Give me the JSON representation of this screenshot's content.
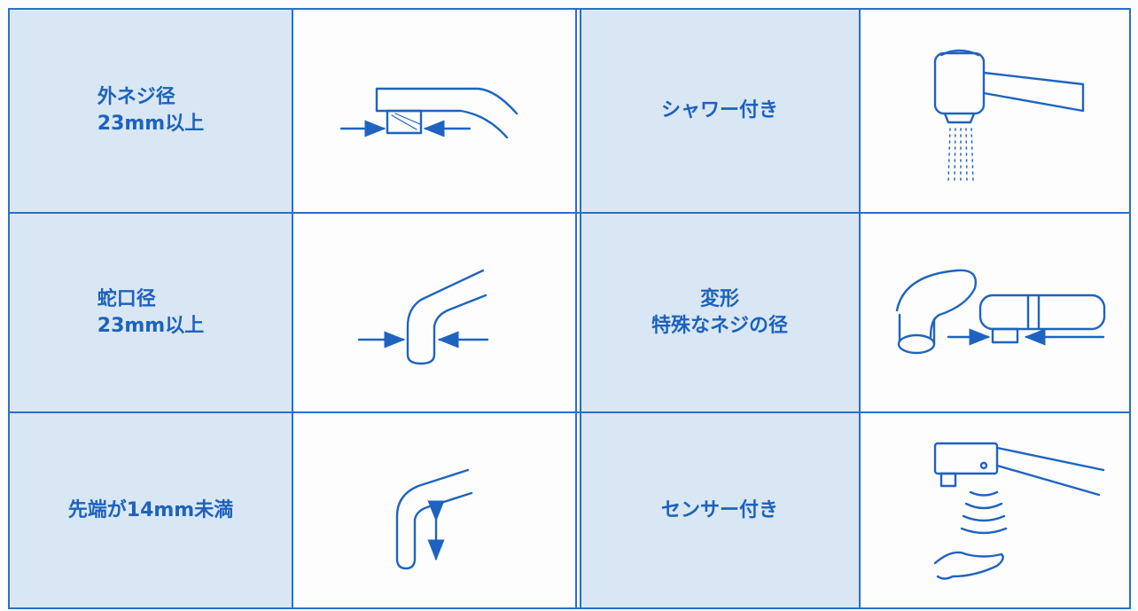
{
  "table": {
    "rows": [
      {
        "left": [
          "外ネジ径",
          "23mm以上"
        ],
        "right": [
          "シャワー付き"
        ]
      },
      {
        "left": [
          "蛇口径",
          "23mm以上"
        ],
        "right": [
          "変形",
          "特殊なネジの径"
        ]
      },
      {
        "left": [
          "先端が14mm未満"
        ],
        "right": [
          "センサー付き"
        ]
      }
    ]
  }
}
